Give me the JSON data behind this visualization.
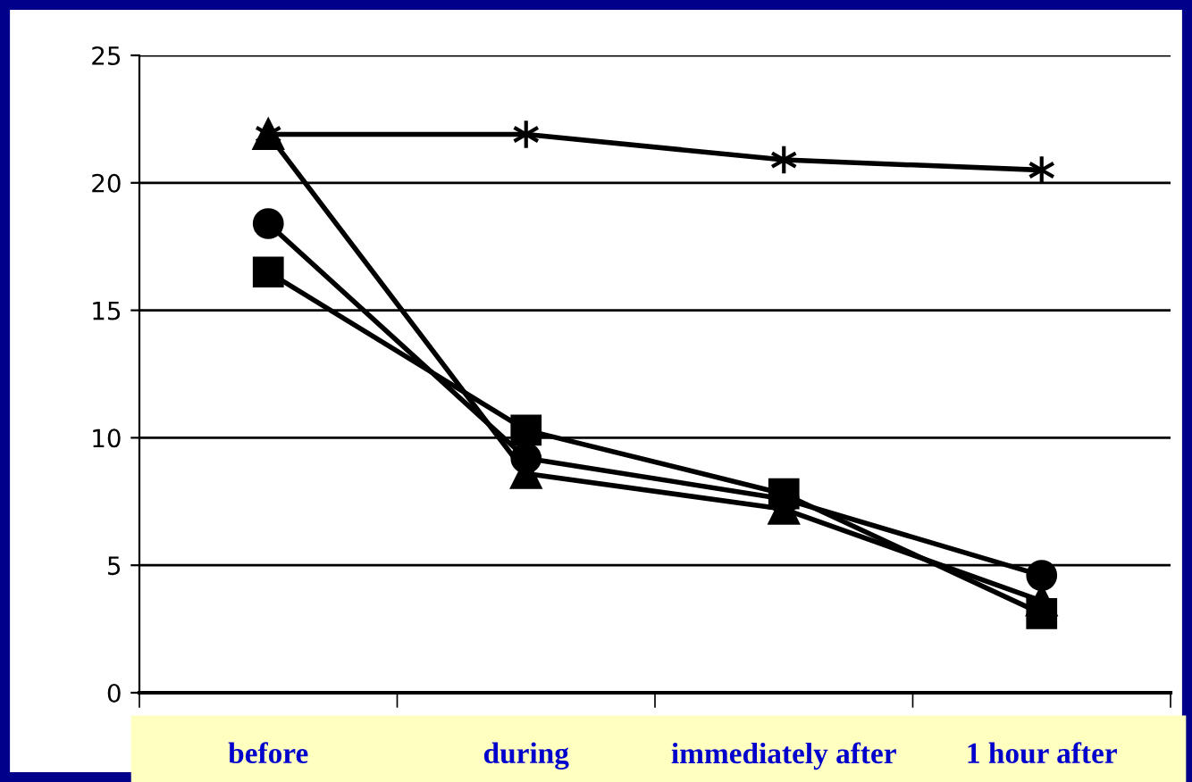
{
  "chart_data": {
    "type": "line",
    "categories": [
      "before",
      "during",
      "immediately after",
      "1 hour after"
    ],
    "series": [
      {
        "color": "#000000",
        "marker": "cross",
        "values": [
          21.9,
          21.9,
          20.9,
          20.5
        ]
      },
      {
        "color": "#000000",
        "marker": "triangle",
        "values": [
          21.9,
          8.6,
          7.2,
          3.6
        ]
      },
      {
        "color": "#000000",
        "marker": "circle",
        "values": [
          18.4,
          9.2,
          7.6,
          4.6
        ]
      },
      {
        "color": "#000000",
        "marker": "square",
        "values": [
          16.5,
          10.3,
          7.8,
          3.1
        ]
      }
    ],
    "ylim": [
      0,
      25
    ],
    "yticks": [
      0,
      5,
      10,
      15,
      20,
      25
    ],
    "grid": "y",
    "legend": false,
    "line_style": "solid"
  }
}
